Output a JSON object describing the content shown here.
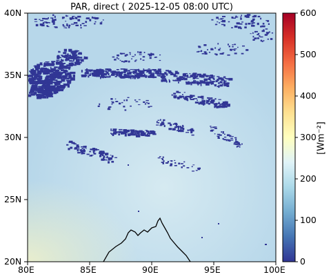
{
  "title": "PAR, direct ( 2025-12-05 08:00 UTC)",
  "map": {
    "lon_range": [
      80,
      100
    ],
    "lat_range": [
      20,
      40
    ],
    "x_ticks": [
      "80E",
      "85E",
      "90E",
      "95E",
      "100E"
    ],
    "y_ticks": [
      "40N",
      "35N",
      "30N",
      "25N",
      "20N"
    ],
    "field_colors": {
      "cloud": "#313695",
      "background": "#b7d7ea",
      "light": "#d9ecf2",
      "warm_corner": "#f2f2c8",
      "coastline": "#000000"
    }
  },
  "colorbar": {
    "ticks": [
      "600",
      "500",
      "400",
      "300",
      "200",
      "100",
      "0"
    ],
    "range": [
      0,
      600
    ],
    "unit_label": "[Wm⁻²]",
    "colormap": [
      "#313695",
      "#4575b4",
      "#74add1",
      "#abd9e9",
      "#e0f3f8",
      "#ffffbf",
      "#fee090",
      "#fdae61",
      "#f46d43",
      "#d73027",
      "#a50026"
    ]
  }
}
